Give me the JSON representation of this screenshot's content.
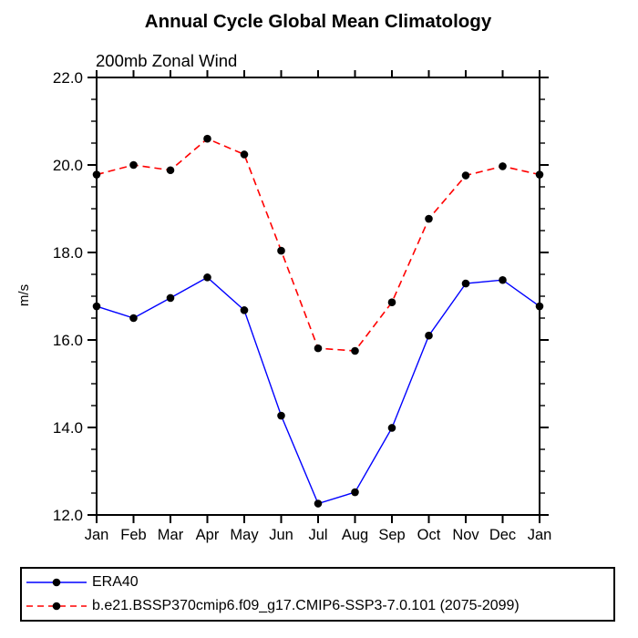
{
  "title": "Annual Cycle Global Mean Climatology",
  "subtitle": "200mb Zonal Wind",
  "ylabel": "m/s",
  "chart_data": {
    "type": "line",
    "title": "Annual Cycle Global Mean Climatology",
    "subtitle": "200mb Zonal Wind",
    "xlabel": "",
    "ylabel": "m/s",
    "categories": [
      "Jan",
      "Feb",
      "Mar",
      "Apr",
      "May",
      "Jun",
      "Jul",
      "Aug",
      "Sep",
      "Oct",
      "Nov",
      "Dec",
      "Jan"
    ],
    "series": [
      {
        "name": "ERA40",
        "color": "#0000ff",
        "style": "solid",
        "marker": "black-filled-circle",
        "values": [
          16.77,
          16.5,
          16.96,
          17.43,
          16.68,
          14.27,
          12.26,
          12.52,
          13.99,
          16.1,
          17.29,
          17.37,
          16.77
        ]
      },
      {
        "name": "b.e21.BSSP370cmip6.f09_g17.CMIP6-SSP3-7.0.101 (2075-2099)",
        "color": "#ff0000",
        "style": "dashed",
        "marker": "black-filled-circle",
        "values": [
          19.78,
          20.0,
          19.88,
          20.6,
          20.24,
          18.04,
          15.81,
          15.75,
          16.86,
          18.77,
          19.76,
          19.97,
          19.78
        ]
      }
    ],
    "ylim": [
      12.0,
      22.0
    ],
    "ytick_major": [
      12,
      14,
      16,
      18,
      20,
      22
    ],
    "ytick_labels": [
      "12.0",
      "14.0",
      "16.0",
      "18.0",
      "20.0",
      "22.0"
    ],
    "ytick_minor_step": 0.5,
    "grid": false,
    "legend_position": "bottom-left-box",
    "marker_color": "#000000",
    "axis_color": "#000000"
  }
}
